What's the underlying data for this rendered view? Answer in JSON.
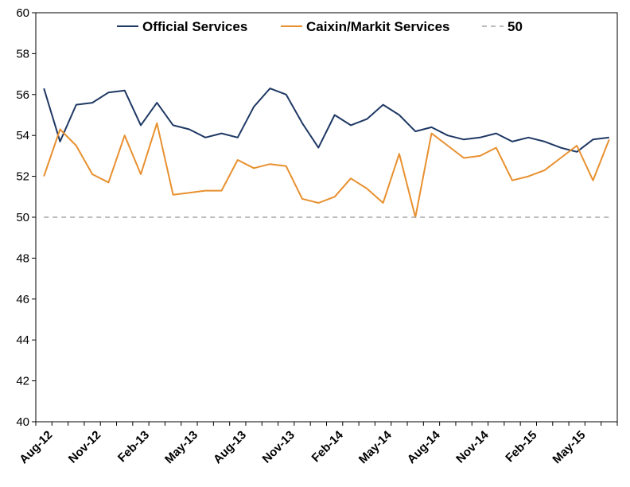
{
  "chart_data": {
    "type": "line",
    "x": [
      "Aug-12",
      "Sep-12",
      "Oct-12",
      "Nov-12",
      "Dec-12",
      "Jan-13",
      "Feb-13",
      "Mar-13",
      "Apr-13",
      "May-13",
      "Jun-13",
      "Jul-13",
      "Aug-13",
      "Sep-13",
      "Oct-13",
      "Nov-13",
      "Dec-13",
      "Jan-14",
      "Feb-14",
      "Mar-14",
      "Apr-14",
      "May-14",
      "Jun-14",
      "Jul-14",
      "Aug-14",
      "Sep-14",
      "Oct-14",
      "Nov-14",
      "Dec-14",
      "Jan-15",
      "Feb-15",
      "Mar-15",
      "Apr-15",
      "May-15",
      "Jun-15",
      "Jul-15"
    ],
    "x_tick_labels": [
      "Aug-12",
      "Nov-12",
      "Feb-13",
      "May-13",
      "Aug-13",
      "Nov-13",
      "Feb-14",
      "May-14",
      "Aug-14",
      "Nov-14",
      "Feb-15",
      "May-15"
    ],
    "series": [
      {
        "name": "Official Services",
        "color": "#1f3864",
        "values": [
          56.3,
          53.7,
          55.5,
          55.6,
          56.1,
          56.2,
          54.5,
          55.6,
          54.5,
          54.3,
          53.9,
          54.1,
          53.9,
          55.4,
          56.3,
          56.0,
          54.6,
          53.4,
          55.0,
          54.5,
          54.8,
          55.5,
          55.0,
          54.2,
          54.4,
          54.0,
          53.8,
          53.9,
          54.1,
          53.7,
          53.9,
          53.7,
          53.4,
          53.2,
          53.8,
          53.9
        ]
      },
      {
        "name": "Caixin/Markit Services",
        "color": "#e8902f",
        "values": [
          52.0,
          54.3,
          53.5,
          52.1,
          51.7,
          54.0,
          52.1,
          54.6,
          51.1,
          51.2,
          51.3,
          51.3,
          52.8,
          52.4,
          52.6,
          52.5,
          50.9,
          50.7,
          51.0,
          51.9,
          51.4,
          50.7,
          53.1,
          50.0,
          54.1,
          53.5,
          52.9,
          53.0,
          53.4,
          51.8,
          52.0,
          52.3,
          52.9,
          53.5,
          51.8,
          53.8
        ]
      },
      {
        "name": "50",
        "color": "#a6a6a6",
        "dashed": true,
        "values": [
          50,
          50,
          50,
          50,
          50,
          50,
          50,
          50,
          50,
          50,
          50,
          50,
          50,
          50,
          50,
          50,
          50,
          50,
          50,
          50,
          50,
          50,
          50,
          50,
          50,
          50,
          50,
          50,
          50,
          50,
          50,
          50,
          50,
          50,
          50,
          50
        ]
      }
    ],
    "ylim": [
      40,
      60
    ],
    "y_ticks": [
      40,
      42,
      44,
      46,
      48,
      50,
      52,
      54,
      56,
      58,
      60
    ],
    "grid": false,
    "legend": "top"
  }
}
